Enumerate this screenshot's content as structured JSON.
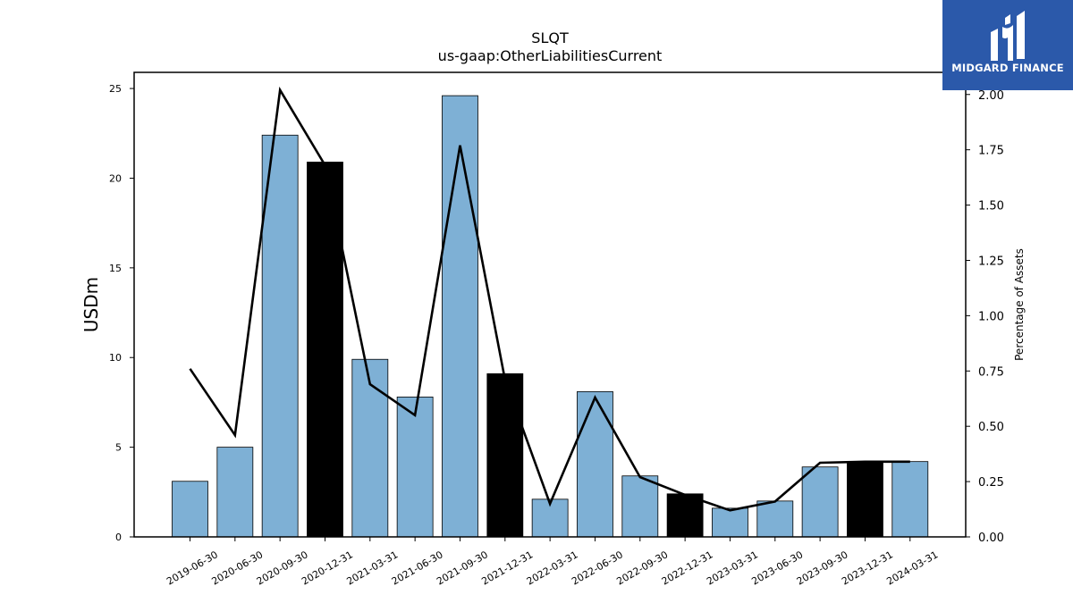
{
  "chart_data": {
    "type": "bar",
    "title": "SLQT",
    "subtitle": "us-gaap:OtherLiabilitiesCurrent",
    "ylabel": "USDm",
    "ylabel_right": "Percentage of Assets",
    "ylim": [
      0,
      25.9
    ],
    "ylim_right": [
      0,
      2.1
    ],
    "yticks": [
      0,
      5,
      10,
      15,
      20,
      25
    ],
    "yticks_right": [
      "0.00",
      "0.25",
      "0.50",
      "0.75",
      "1.00",
      "1.25",
      "1.50",
      "1.75",
      "2.00"
    ],
    "categories": [
      "2019-06-30",
      "2020-06-30",
      "2020-09-30",
      "2020-12-31",
      "2021-03-31",
      "2021-06-30",
      "2021-09-30",
      "2021-12-31",
      "2022-03-31",
      "2022-06-30",
      "2022-09-30",
      "2022-12-31",
      "2023-03-31",
      "2023-06-30",
      "2023-09-30",
      "2023-12-31",
      "2024-03-31"
    ],
    "series": [
      {
        "values": [
          3.1,
          5.0,
          22.4,
          20.9,
          9.9,
          7.8,
          24.6,
          9.1,
          2.1,
          8.1,
          3.4,
          2.4,
          1.6,
          2.0,
          3.9,
          4.2,
          4.2
        ],
        "highlight": [
          false,
          false,
          false,
          true,
          false,
          false,
          false,
          true,
          false,
          false,
          false,
          true,
          false,
          false,
          false,
          true,
          false
        ]
      },
      {
        "axis": "right",
        "type": "line",
        "values": [
          0.76,
          0.46,
          2.02,
          1.68,
          0.69,
          0.55,
          1.77,
          0.71,
          0.15,
          0.63,
          0.27,
          0.19,
          0.12,
          0.16,
          0.335,
          0.34,
          0.34
        ]
      }
    ],
    "colors": {
      "bar": "#7eb0d5",
      "bar_highlight": "#000000",
      "line": "#000000"
    },
    "grid": false
  },
  "logo": {
    "text": "MIDGARD FINANCE"
  }
}
